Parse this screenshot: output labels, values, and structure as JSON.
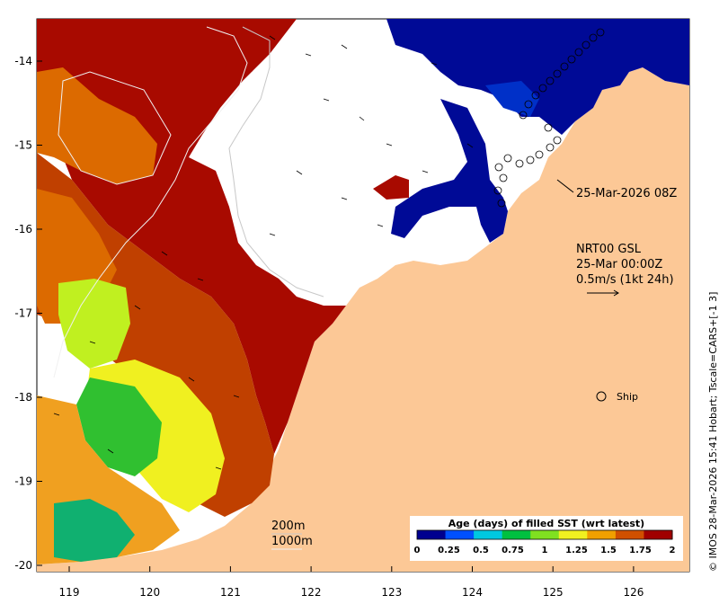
{
  "axes": {
    "x_ticks": [
      "119",
      "120",
      "121",
      "122",
      "123",
      "124",
      "125",
      "126"
    ],
    "y_ticks": [
      "-14",
      "-15",
      "-16",
      "-17",
      "-18",
      "-19",
      "-20"
    ]
  },
  "annotations": {
    "track_time": "25-Mar-2026 08Z",
    "model_line1": "NRT00 GSL",
    "model_line2": "25-Mar 00:00Z",
    "vector_scale": "0.5m/s (1kt 24h)",
    "ship_label": "Ship",
    "depth_200": "200m",
    "depth_1000": "1000m"
  },
  "colorbar": {
    "title": "Age (days) of filled SST (wrt latest)",
    "ticks": [
      "0",
      "0.25",
      "0.5",
      "0.75",
      "1",
      "1.25",
      "1.5",
      "1.75",
      "2"
    ],
    "colors": [
      "#00008f",
      "#0050ff",
      "#00c8e0",
      "#00c040",
      "#80e020",
      "#f0f020",
      "#f0a000",
      "#d05000",
      "#a00000"
    ]
  },
  "credit": "© IMOS 28-Mar-2026 15:41 Hobart; Tscale=CARS+[-1 3]",
  "colors": {
    "land": "#fcc896",
    "no_data": "#ffffff",
    "dark_red": "#a80a00",
    "rust": "#c04000",
    "orange": "#dc6a00",
    "light_orange": "#f0a020",
    "yellow": "#f0f020",
    "yellow_green": "#c0f020",
    "green": "#30c030",
    "teal_green": "#10b070",
    "navy": "#000a96",
    "blue": "#0030c8"
  }
}
